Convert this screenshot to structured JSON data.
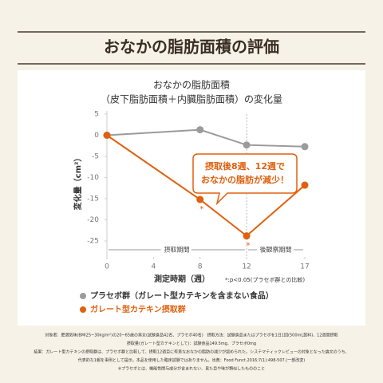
{
  "header": {
    "title": "おなかの脂肪面積の評価"
  },
  "chart_data": {
    "type": "line",
    "title": "おなかの脂肪面積",
    "subtitle": "（皮下脂肪面積＋内臓脂肪面積）の変化量",
    "xlabel": "測定時期（週）",
    "ylabel": "変化量（cm²）",
    "xlim": [
      0,
      17
    ],
    "xticks": [
      0,
      4,
      8,
      12,
      17
    ],
    "ylim": [
      -25,
      5
    ],
    "yticks": [
      5,
      0,
      -5,
      -10,
      -15,
      -20,
      -25
    ],
    "x": [
      0,
      8,
      12,
      17
    ],
    "series": [
      {
        "name": "プラセボ群（ガレート型カテキンを含まない食品）",
        "color": "#9b9b9b",
        "values": [
          0,
          1.3,
          -2.3,
          -2.7
        ]
      },
      {
        "name": "ガレート型カテキン摂取群",
        "color": "#e0600f",
        "values": [
          0,
          -15.2,
          -23.8,
          -11.8
        ]
      }
    ],
    "periods": [
      {
        "label": "摂取期間",
        "start": 0,
        "end": 12
      },
      {
        "label": "後観察期間",
        "start": 12,
        "end": 17
      }
    ],
    "significance": [
      {
        "x": 8,
        "label": "*"
      },
      {
        "x": 12,
        "label": "*"
      }
    ],
    "significance_note": "*:p<0.05(プラセボ群との比較)",
    "callout": [
      "摂取後8週、12週で",
      "おなかの脂肪が減少！"
    ]
  },
  "footnotes": [
    "対象者：肥満気味(BMI25~30kg/m²)の20~65歳の男女(試験食品42名、プラセボ40名)　摂取方法：試験食品またはプラセボを1日1回(500mL飲料)、12週間摂取",
    "摂取量(ガレート型カテキンとして)：試験食品149.5mg、プラセボ0mg",
    "結果：ガレート型カテキンの摂取群は、プラセボ群と比較して、摂取12週目に有意なおなかの脂肪の減少が認められた。システマティックレビューの対象となった論文のうち、",
    "代表的な1報を事例として提示。本品を使用した臨床試験ではありません。出典：Food Funct.2016;7(1):498-507.(一部改変)",
    "※プラセボとは、機能性関与成分が含まれない、見た目や味が類似したもののこと"
  ]
}
